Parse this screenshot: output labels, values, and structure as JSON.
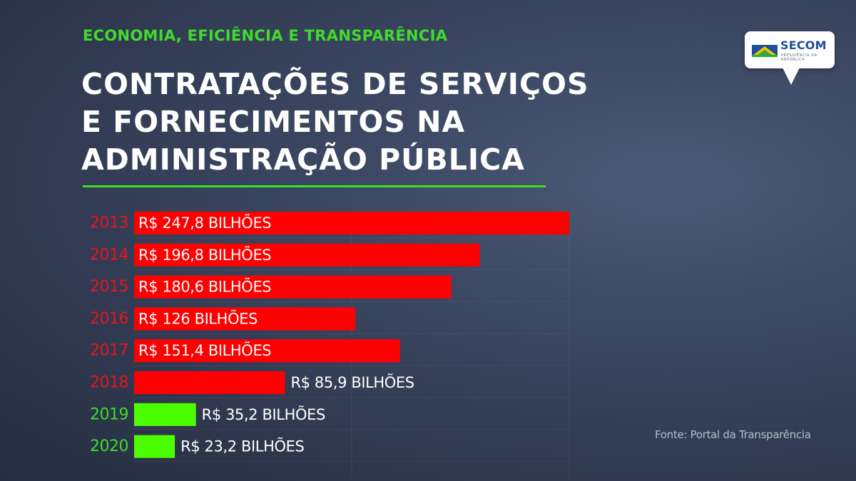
{
  "header": {
    "eyebrow": "ECONOMIA, EFICIÊNCIA E TRANSPARÊNCIA",
    "title_lines": [
      "CONTRATAÇÕES DE SERVIÇOS",
      "E FORNECIMENTOS NA",
      "ADMINISTRAÇÃO PÚBLICA"
    ]
  },
  "logo": {
    "name": "SECOM",
    "subtitle": "PRESIDÊNCIA DA REPÚBLICA",
    "icon": "brazil-flag-mark-icon"
  },
  "source": "Fonte: Portal da Transparência",
  "colors": {
    "accent_green": "#3fdc2a",
    "bar_red": "#ff0000",
    "bar_green": "#4cff00",
    "year_red": "#e8141c"
  },
  "chart_data": {
    "type": "bar",
    "orientation": "horizontal",
    "categories": [
      "2013",
      "2014",
      "2015",
      "2016",
      "2017",
      "2018",
      "2019",
      "2020"
    ],
    "values": [
      247.8,
      196.8,
      180.6,
      126,
      151.4,
      85.9,
      35.2,
      23.2
    ],
    "value_labels": [
      "R$ 247,8 BILHÕES",
      "R$ 196,8 BILHÕES",
      "R$ 180,6 BILHÕES",
      "R$ 126 BILHÕES",
      "R$ 151,4 BILHÕES",
      "R$ 85,9 BILHÕES",
      "R$ 35,2 BILHÕES",
      "R$ 23,2 BILHÕES"
    ],
    "bar_colors": [
      "#ff0000",
      "#ff0000",
      "#ff0000",
      "#ff0000",
      "#ff0000",
      "#ff0000",
      "#4cff00",
      "#4cff00"
    ],
    "label_colors": [
      "#e8141c",
      "#e8141c",
      "#e8141c",
      "#e8141c",
      "#e8141c",
      "#e8141c",
      "#3fdc2a",
      "#3fdc2a"
    ],
    "xlim": [
      0,
      247.8
    ],
    "grid": true,
    "title": "",
    "xlabel": "",
    "ylabel": ""
  }
}
